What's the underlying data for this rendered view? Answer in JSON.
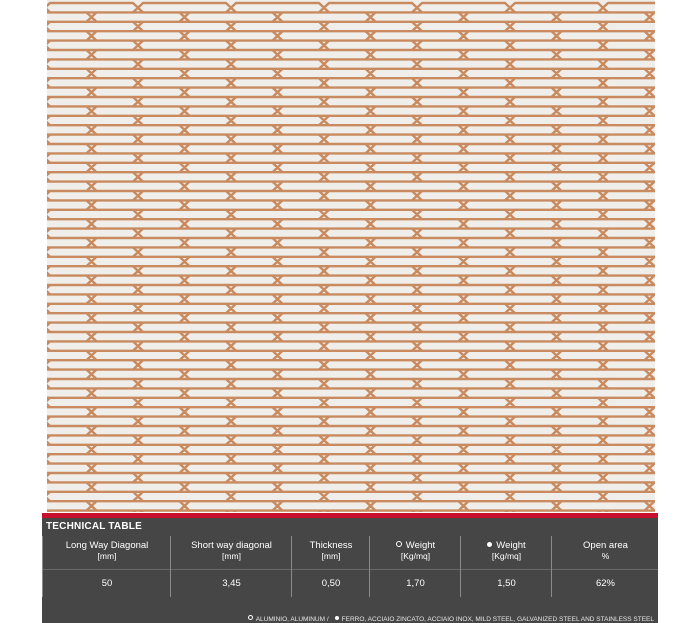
{
  "mesh": {
    "colors": {
      "wire": "#c88a5e",
      "wire_light": "#dba57d",
      "background": "#efeeea"
    }
  },
  "technical_table": {
    "title": "TECHNICAL TABLE",
    "accent_color": "#c8102e",
    "panel_color": "#464646",
    "columns": [
      {
        "label": "Long Way Diagonal",
        "unit": "[mm]",
        "value": "50",
        "marker": ""
      },
      {
        "label": "Short way diagonal",
        "unit": "[mm]",
        "value": "3,45",
        "marker": ""
      },
      {
        "label": "Thickness",
        "unit": "[mm]",
        "value": "0,50",
        "marker": ""
      },
      {
        "label": "Weight",
        "unit": "[Kg/mq]",
        "value": "1,70",
        "marker": "open-circle-icon"
      },
      {
        "label": "Weight",
        "unit": "[Kg/mq]",
        "value": "1,50",
        "marker": "filled-circle-icon"
      },
      {
        "label": "Open area",
        "unit": "%",
        "value": "62%",
        "marker": ""
      }
    ],
    "legend": {
      "aluminium": "ALUMINIO, ALUMINUM /",
      "steel": "FERRO, ACCIAIO ZINCATO, ACCIAIO INOX, MILD STEEL, GALVANIZED STEEL AND STAINLESS STEEL"
    }
  }
}
